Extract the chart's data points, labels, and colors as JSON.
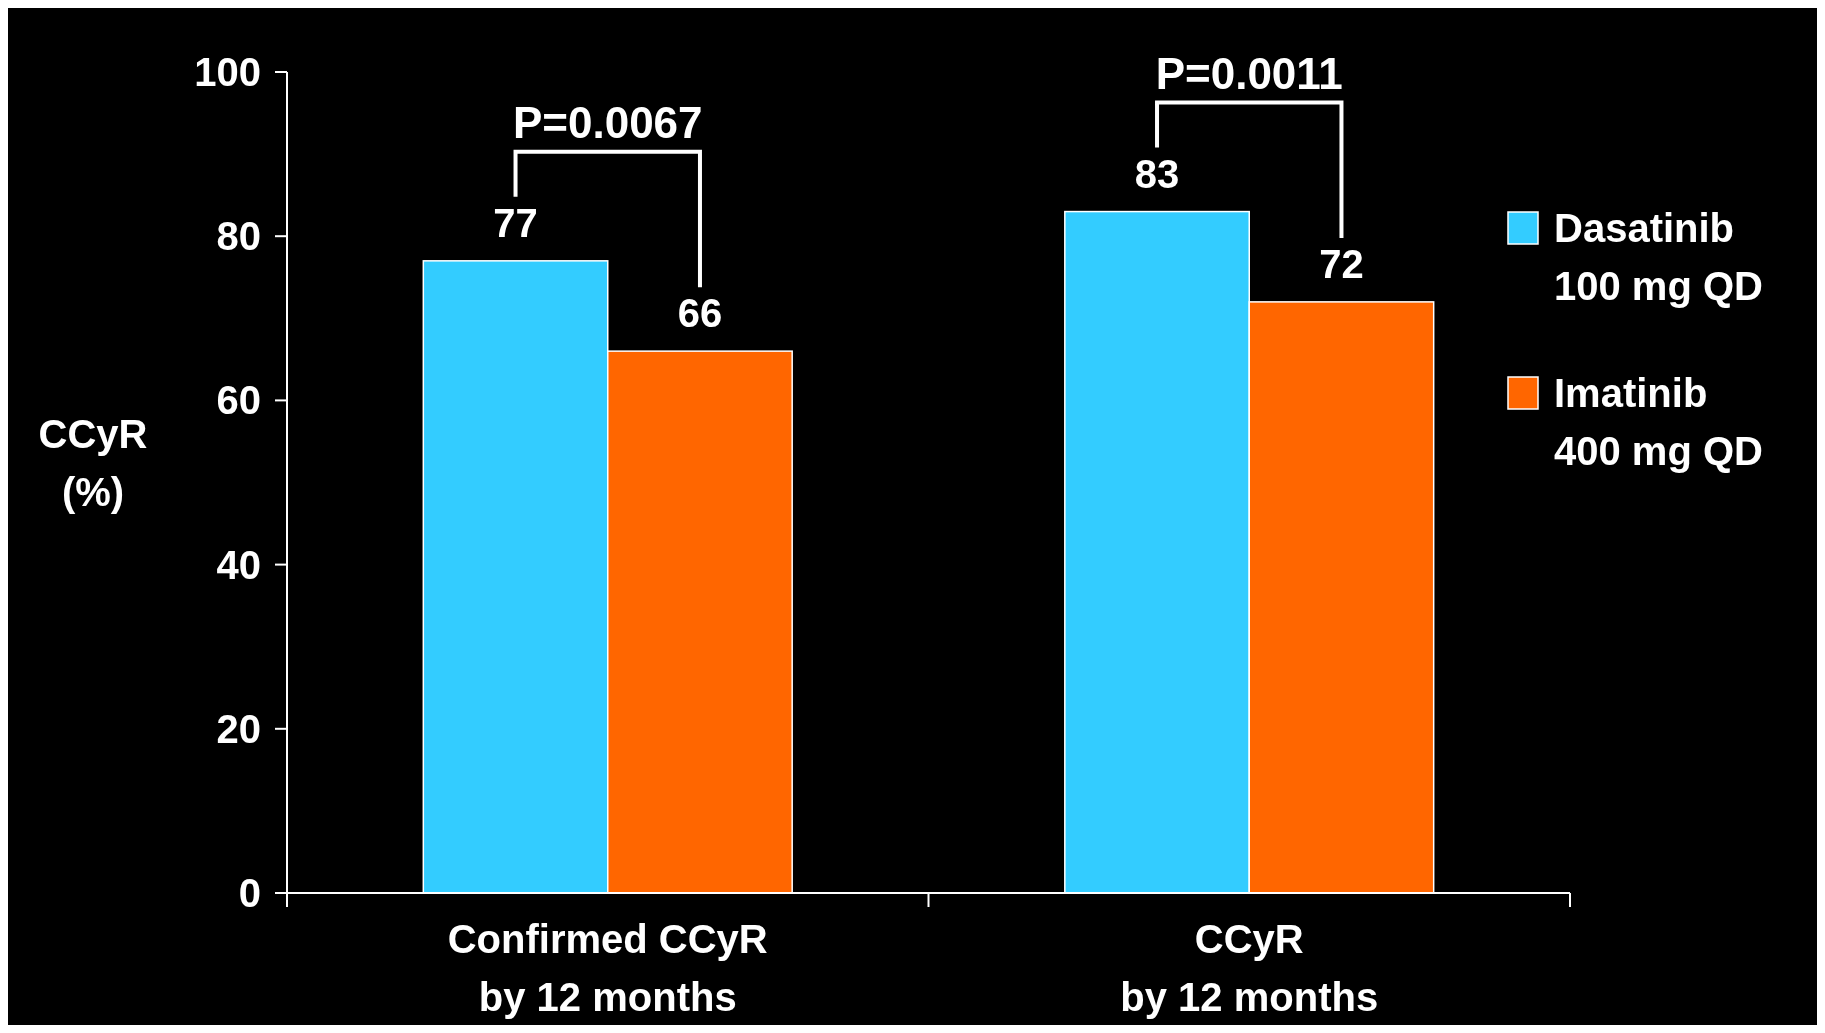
{
  "chart_data": {
    "type": "bar",
    "ylabel": "CCyR\n(%)",
    "categories": [
      "Confirmed CCyR\nby 12 months",
      "CCyR\nby 12 months"
    ],
    "series": [
      {
        "name": "Dasatinib\n100 mg QD",
        "color": "#33ccff",
        "values": [
          77,
          83
        ]
      },
      {
        "name": "Imatinib\n400 mg QD",
        "color": "#ff6600",
        "values": [
          66,
          72
        ]
      }
    ],
    "ylim": [
      0,
      100
    ],
    "yticks": [
      0,
      20,
      40,
      60,
      80,
      100
    ],
    "grid": false,
    "legend": "right",
    "data_labels": true,
    "annotations": [
      "P=0.0067",
      "P=0.0011"
    ]
  }
}
